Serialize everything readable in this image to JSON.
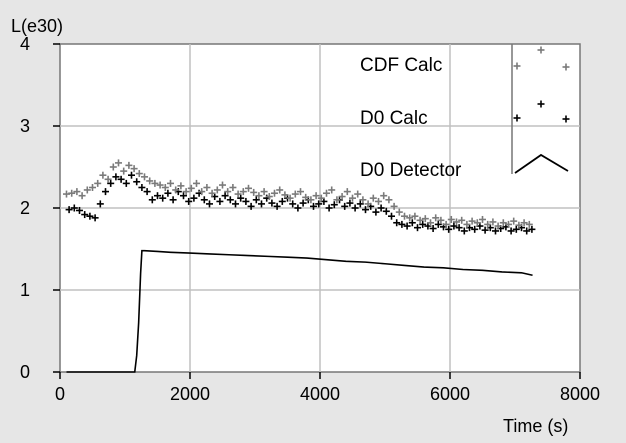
{
  "chart_data": {
    "type": "scatter",
    "ylabel": "L(e30)",
    "xlabel": "Time (s)",
    "xlim": [
      0,
      8000
    ],
    "ylim": [
      0,
      4
    ],
    "x_ticks": [
      0,
      2000,
      4000,
      6000,
      8000
    ],
    "y_ticks": [
      0,
      1,
      2,
      3,
      4
    ],
    "grid": true,
    "legend_position": "top-right",
    "colors": {
      "plot_background": "#ffffff",
      "page_background": "#e6e6e6",
      "grid": "#c0c0c0",
      "cdf_calc": "#7a7a7a",
      "d0_calc": "#000000",
      "d0_detector": "#000000"
    },
    "series": [
      {
        "name": "CDF Calc",
        "marker": "plus",
        "x": [
          100,
          180,
          260,
          340,
          420,
          500,
          580,
          660,
          740,
          820,
          900,
          980,
          1060,
          1140,
          1220,
          1300,
          1380,
          1460,
          1540,
          1620,
          1700,
          1780,
          1860,
          1940,
          2020,
          2100,
          2180,
          2260,
          2340,
          2420,
          2500,
          2580,
          2660,
          2740,
          2820,
          2900,
          2980,
          3060,
          3140,
          3220,
          3300,
          3380,
          3460,
          3540,
          3620,
          3700,
          3780,
          3860,
          3940,
          4020,
          4100,
          4180,
          4260,
          4340,
          4420,
          4500,
          4580,
          4660,
          4740,
          4820,
          4900,
          4980,
          5060,
          5140,
          5220,
          5300,
          5380,
          5460,
          5540,
          5620,
          5700,
          5780,
          5860,
          5940,
          6020,
          6100,
          6180,
          6260,
          6340,
          6420,
          6500,
          6580,
          6660,
          6740,
          6820,
          6900,
          6980,
          7060,
          7140,
          7220
        ],
        "y": [
          2.17,
          2.18,
          2.2,
          2.15,
          2.22,
          2.25,
          2.3,
          2.4,
          2.35,
          2.5,
          2.55,
          2.45,
          2.52,
          2.48,
          2.42,
          2.38,
          2.33,
          2.3,
          2.28,
          2.25,
          2.3,
          2.22,
          2.27,
          2.2,
          2.24,
          2.3,
          2.2,
          2.25,
          2.18,
          2.22,
          2.28,
          2.2,
          2.25,
          2.17,
          2.2,
          2.24,
          2.19,
          2.15,
          2.2,
          2.14,
          2.18,
          2.22,
          2.16,
          2.12,
          2.17,
          2.2,
          2.13,
          2.1,
          2.15,
          2.12,
          2.18,
          2.22,
          2.1,
          2.14,
          2.2,
          2.12,
          2.17,
          2.1,
          2.05,
          2.12,
          2.08,
          2.15,
          2.1,
          2.02,
          1.95,
          1.9,
          1.88,
          1.9,
          1.85,
          1.87,
          1.82,
          1.88,
          1.85,
          1.8,
          1.86,
          1.83,
          1.85,
          1.8,
          1.84,
          1.82,
          1.86,
          1.8,
          1.83,
          1.78,
          1.82,
          1.8,
          1.84,
          1.79,
          1.82,
          1.8
        ]
      },
      {
        "name": "D0 Calc",
        "marker": "plus",
        "x": [
          140,
          220,
          300,
          380,
          460,
          540,
          620,
          700,
          780,
          860,
          940,
          1020,
          1100,
          1180,
          1260,
          1340,
          1420,
          1500,
          1580,
          1660,
          1740,
          1820,
          1900,
          1980,
          2060,
          2140,
          2220,
          2300,
          2380,
          2460,
          2540,
          2620,
          2700,
          2780,
          2860,
          2940,
          3020,
          3100,
          3180,
          3260,
          3340,
          3420,
          3500,
          3580,
          3660,
          3740,
          3820,
          3900,
          3980,
          4060,
          4140,
          4220,
          4300,
          4380,
          4460,
          4540,
          4620,
          4700,
          4780,
          4860,
          4940,
          5020,
          5100,
          5180,
          5260,
          5340,
          5420,
          5500,
          5580,
          5660,
          5740,
          5820,
          5900,
          5980,
          6060,
          6140,
          6220,
          6300,
          6380,
          6460,
          6540,
          6620,
          6700,
          6780,
          6860,
          6940,
          7020,
          7100,
          7180,
          7260
        ],
        "y": [
          1.98,
          2.0,
          1.97,
          1.92,
          1.9,
          1.88,
          2.05,
          2.2,
          2.3,
          2.38,
          2.35,
          2.3,
          2.4,
          2.32,
          2.25,
          2.2,
          2.1,
          2.15,
          2.12,
          2.18,
          2.1,
          2.2,
          2.15,
          2.08,
          2.12,
          2.18,
          2.1,
          2.05,
          2.14,
          2.08,
          2.15,
          2.1,
          2.05,
          2.12,
          2.08,
          2.02,
          2.1,
          2.05,
          2.12,
          2.06,
          2.02,
          2.08,
          2.12,
          2.05,
          2.0,
          2.06,
          2.1,
          2.02,
          2.05,
          2.08,
          2.0,
          2.04,
          2.1,
          2.02,
          2.06,
          2.0,
          2.05,
          1.98,
          2.02,
          1.95,
          2.0,
          1.96,
          1.9,
          1.82,
          1.8,
          1.78,
          1.82,
          1.76,
          1.8,
          1.78,
          1.75,
          1.8,
          1.77,
          1.74,
          1.78,
          1.76,
          1.72,
          1.76,
          1.74,
          1.78,
          1.73,
          1.76,
          1.72,
          1.75,
          1.77,
          1.72,
          1.74,
          1.76,
          1.72,
          1.74
        ]
      },
      {
        "name": "D0 Detector",
        "marker": "line",
        "x": [
          100,
          1150,
          1180,
          1210,
          1240,
          1260,
          1300,
          1500,
          1700,
          2000,
          2300,
          2600,
          2900,
          3200,
          3500,
          3800,
          4100,
          4400,
          4700,
          5000,
          5300,
          5600,
          5900,
          6200,
          6500,
          6800,
          7100,
          7270
        ],
        "y": [
          0.0,
          0.0,
          0.2,
          0.6,
          1.2,
          1.48,
          1.48,
          1.47,
          1.46,
          1.45,
          1.44,
          1.43,
          1.42,
          1.41,
          1.4,
          1.39,
          1.37,
          1.35,
          1.34,
          1.32,
          1.3,
          1.28,
          1.27,
          1.25,
          1.24,
          1.22,
          1.21,
          1.18
        ]
      }
    ]
  }
}
